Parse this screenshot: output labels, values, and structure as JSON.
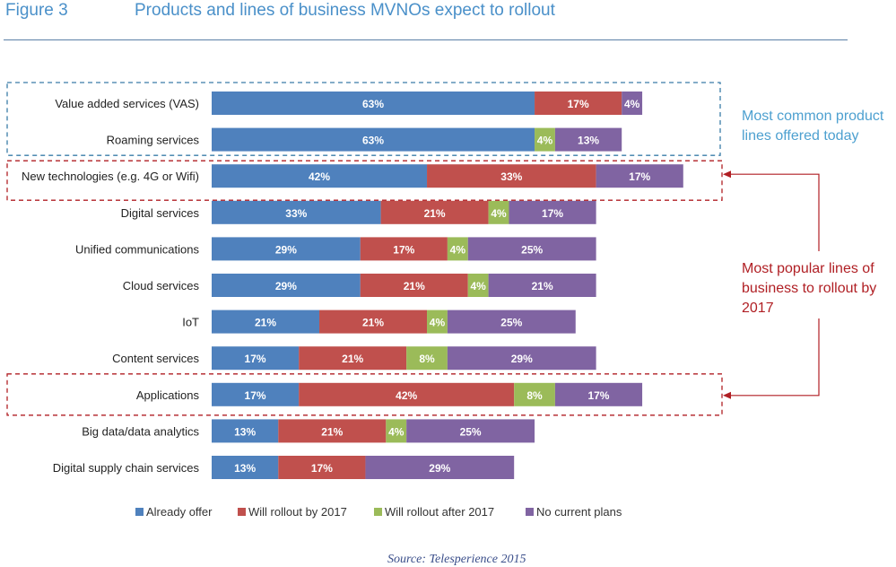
{
  "header": {
    "figure_label": "Figure 3",
    "title": "Products and lines of business MVNOs expect to rollout"
  },
  "annotations": {
    "common": "Most common product lines offered today",
    "popular": "Most popular lines of business to rollout by 2017"
  },
  "source": "Source: Telesperience 2015",
  "colors": {
    "already_offer": "#4f81bd",
    "rollout_2017": "#c0504d",
    "rollout_after": "#9bbb59",
    "no_plans": "#8064a2",
    "common_box": "#3a7ca8",
    "popular_box": "#b01f24"
  },
  "chart_data": {
    "type": "bar",
    "orientation": "horizontal",
    "stacked": true,
    "categories": [
      "Value added services (VAS)",
      "Roaming services",
      "New technologies (e.g. 4G or Wifi)",
      "Digital services",
      "Unified communications",
      "Cloud services",
      "IoT",
      "Content services",
      "Applications",
      "Big data/data analytics",
      "Digital supply chain services"
    ],
    "series": [
      {
        "name": "Already offer",
        "color": "#4f81bd",
        "values": [
          63,
          63,
          42,
          33,
          29,
          29,
          21,
          17,
          17,
          13,
          13
        ]
      },
      {
        "name": "Will rollout by 2017",
        "color": "#c0504d",
        "values": [
          17,
          0,
          33,
          21,
          17,
          21,
          21,
          21,
          42,
          21,
          17
        ]
      },
      {
        "name": "Will rollout after 2017",
        "color": "#9bbb59",
        "values": [
          0,
          4,
          0,
          4,
          4,
          4,
          4,
          8,
          8,
          4,
          0
        ]
      },
      {
        "name": "No current plans",
        "color": "#8064a2",
        "values": [
          4,
          13,
          17,
          17,
          25,
          21,
          25,
          29,
          17,
          25,
          29
        ]
      }
    ],
    "value_unit": "%",
    "legend_position": "bottom",
    "grid": false,
    "highlight_groups": [
      {
        "label": "Most common product lines offered today",
        "categories": [
          "Value added services (VAS)",
          "Roaming services"
        ]
      },
      {
        "label": "Most popular lines of business to rollout by 2017",
        "categories": [
          "New technologies (e.g. 4G or Wifi)",
          "Applications"
        ]
      }
    ]
  }
}
